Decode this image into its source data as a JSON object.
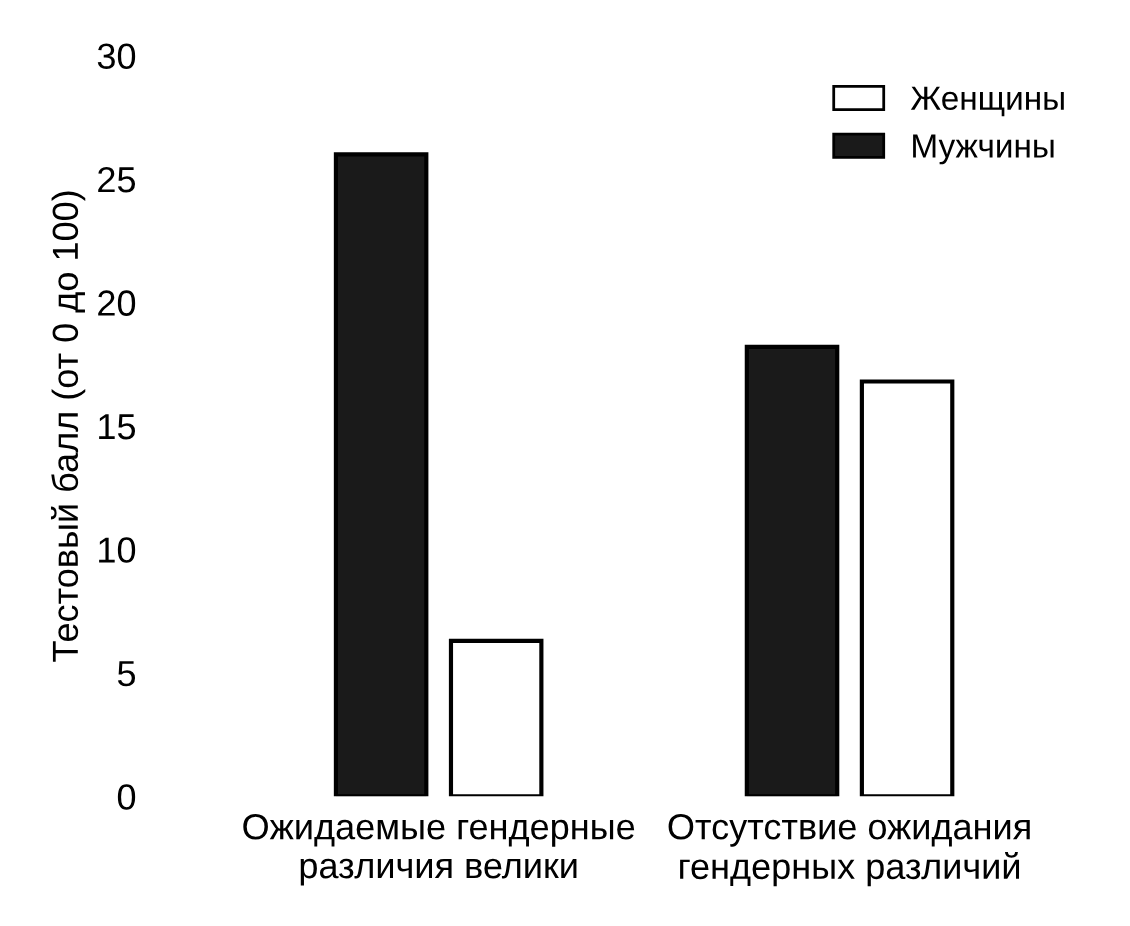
{
  "chart_data": {
    "type": "bar",
    "ylabel": "Тестовый балл (от 0 до 100)",
    "categories": [
      "Ожидаемые гендерные\nразличия велики",
      "Отсутствие ожидания\nгендерных различий"
    ],
    "series": [
      {
        "name": "Мужчины",
        "color": "#1a1a1a",
        "values": [
          26,
          18.2
        ]
      },
      {
        "name": "Женщины",
        "color": "#ffffff",
        "values": [
          6.3,
          16.8
        ]
      }
    ],
    "ylim": [
      0,
      30
    ],
    "yticks": [
      0,
      5,
      10,
      15,
      20,
      25,
      30
    ],
    "grid": false,
    "legend": "top right"
  }
}
